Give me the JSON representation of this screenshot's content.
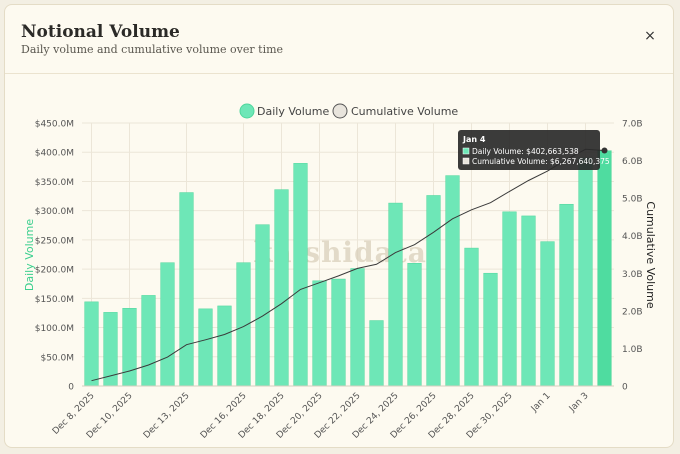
{
  "header": {
    "title": "Notional Volume",
    "subtitle": "Daily volume and cumulative volume over time",
    "close_label": "×"
  },
  "watermark": "kalshidata",
  "colors": {
    "bar": "#6ee7b7",
    "bar_stroke": "#4fd69c",
    "line": "#3a3a3a",
    "left_axis_label": "#3ccf8e",
    "tooltip_bg": "#2a2a2a"
  },
  "tooltip": {
    "title": "Jan 4",
    "daily": "Daily Volume: $402,663,538",
    "cumulative": "Cumulative Volume: $6,267,640,375"
  },
  "chart_data": {
    "type": "bar",
    "title": "Notional Volume",
    "subtitle": "Daily volume and cumulative volume over time",
    "categories": [
      "Dec 8, 2025",
      "Dec 9, 2025",
      "Dec 10, 2025",
      "Dec 11, 2025",
      "Dec 12, 2025",
      "Dec 13, 2025",
      "Dec 14, 2025",
      "Dec 15, 2025",
      "Dec 16, 2025",
      "Dec 17, 2025",
      "Dec 18, 2025",
      "Dec 19, 2025",
      "Dec 20, 2025",
      "Dec 21, 2025",
      "Dec 22, 2025",
      "Dec 23, 2025",
      "Dec 24, 2025",
      "Dec 25, 2025",
      "Dec 26, 2025",
      "Dec 27, 2025",
      "Dec 28, 2025",
      "Dec 29, 2025",
      "Dec 30, 2025",
      "Dec 31, 2025",
      "Jan 1",
      "Jan 2",
      "Jan 3",
      "Jan 4"
    ],
    "x_tick_labels": [
      "Dec 8, 2025",
      "Dec 10, 2025",
      "Dec 13, 2025",
      "Dec 16, 2025",
      "Dec 18, 2025",
      "Dec 20, 2025",
      "Dec 22, 2025",
      "Dec 24, 2025",
      "Dec 26, 2025",
      "Dec 28, 2025",
      "Dec 30, 2025",
      "Jan 1",
      "Jan 3"
    ],
    "x_tick_indices": [
      0,
      2,
      5,
      8,
      10,
      12,
      14,
      16,
      18,
      20,
      22,
      24,
      26
    ],
    "series": [
      {
        "name": "Daily Volume",
        "axis": "left",
        "type": "bar",
        "values": [
          144000000,
          126000000,
          133000000,
          155000000,
          211000000,
          331000000,
          132000000,
          137000000,
          211000000,
          276000000,
          336000000,
          381000000,
          180000000,
          183000000,
          201000000,
          112000000,
          313000000,
          210000000,
          326000000,
          360000000,
          236000000,
          193000000,
          298000000,
          291000000,
          247000000,
          311000000,
          390000000,
          402663538
        ]
      },
      {
        "name": "Cumulative Volume",
        "axis": "right",
        "type": "line",
        "values": [
          140000000,
          270000000,
          400000000,
          560000000,
          770000000,
          1100000000,
          1230000000,
          1370000000,
          1580000000,
          1860000000,
          2190000000,
          2570000000,
          2750000000,
          2930000000,
          3130000000,
          3240000000,
          3550000000,
          3760000000,
          4090000000,
          4450000000,
          4690000000,
          4880000000,
          5180000000,
          5470000000,
          5720000000,
          6030000000,
          6300000000,
          6267640375
        ]
      }
    ],
    "left_axis": {
      "label": "Daily Volume",
      "ylim": [
        0,
        450000000
      ],
      "ticks": [
        0,
        50000000,
        100000000,
        150000000,
        200000000,
        250000000,
        300000000,
        350000000,
        400000000,
        450000000
      ],
      "tick_labels": [
        "0",
        "$50.0M",
        "$100.0M",
        "$150.0M",
        "$200.0M",
        "$250.0M",
        "$300.0M",
        "$350.0M",
        "$400.0M",
        "$450.0M"
      ]
    },
    "right_axis": {
      "label": "Cumulative Volume",
      "ylim": [
        0,
        7000000000
      ],
      "ticks": [
        0,
        1000000000,
        2000000000,
        3000000000,
        4000000000,
        5000000000,
        6000000000,
        7000000000
      ],
      "tick_labels": [
        "0",
        "1.0B",
        "2.0B",
        "3.0B",
        "4.0B",
        "5.0B",
        "6.0B",
        "7.0B"
      ]
    },
    "legend": {
      "position": "top-center",
      "items": [
        "Daily Volume",
        "Cumulative Volume"
      ]
    },
    "grid": true,
    "highlighted_index": 27
  }
}
